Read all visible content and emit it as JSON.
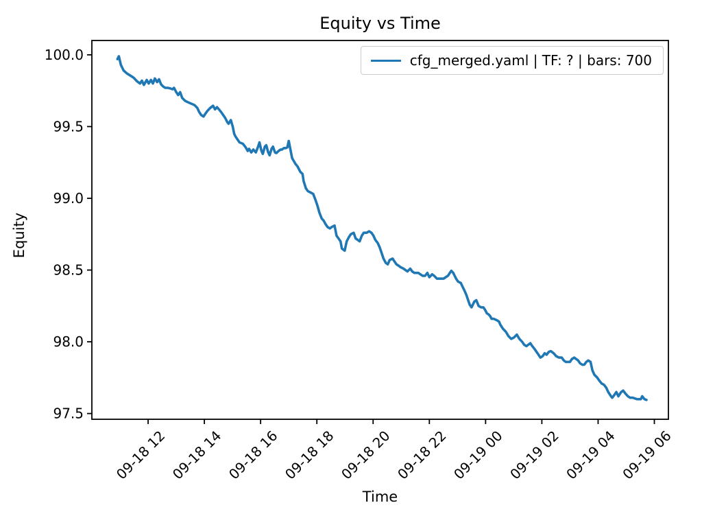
{
  "chart_data": {
    "type": "line",
    "title": "Equity vs Time",
    "xlabel": "Time",
    "ylabel": "Equity",
    "x_unit": "hours since 09-18 00:00",
    "xlim": [
      10.0,
      30.5
    ],
    "ylim": [
      97.46,
      100.1
    ],
    "grid": false,
    "legend_position": "upper right",
    "colors": {
      "line": "#1f77b4",
      "text": "#000000",
      "legend_border": "#cccccc",
      "background": "#ffffff"
    },
    "x_ticks": [
      {
        "pos": 12,
        "label": "09-18 12"
      },
      {
        "pos": 14,
        "label": "09-18 14"
      },
      {
        "pos": 16,
        "label": "09-18 16"
      },
      {
        "pos": 18,
        "label": "09-18 18"
      },
      {
        "pos": 20,
        "label": "09-18 20"
      },
      {
        "pos": 22,
        "label": "09-18 22"
      },
      {
        "pos": 24,
        "label": "09-19 00"
      },
      {
        "pos": 26,
        "label": "09-19 02"
      },
      {
        "pos": 28,
        "label": "09-19 04"
      },
      {
        "pos": 30,
        "label": "09-19 06"
      }
    ],
    "y_ticks": [
      {
        "pos": 100.0,
        "label": "100.0"
      },
      {
        "pos": 99.5,
        "label": "99.5"
      },
      {
        "pos": 99.0,
        "label": "99.0"
      },
      {
        "pos": 98.5,
        "label": "98.5"
      },
      {
        "pos": 98.0,
        "label": "98.0"
      },
      {
        "pos": 97.5,
        "label": "97.5"
      }
    ],
    "series": [
      {
        "name": "cfg_merged.yaml | TF: ? | bars: 700",
        "color": "#1f77b4",
        "x": [
          10.91,
          10.96,
          11.03,
          11.13,
          11.25,
          11.37,
          11.49,
          11.61,
          11.71,
          11.78,
          11.85,
          11.95,
          12.02,
          12.1,
          12.17,
          12.24,
          12.32,
          12.39,
          12.46,
          12.53,
          12.61,
          12.7,
          12.8,
          12.87,
          12.92,
          13.0,
          13.07,
          13.14,
          13.21,
          13.31,
          13.41,
          13.53,
          13.65,
          13.75,
          13.82,
          13.89,
          13.97,
          14.04,
          14.11,
          14.21,
          14.31,
          14.38,
          14.45,
          14.52,
          14.6,
          14.67,
          14.74,
          14.82,
          14.86,
          14.94,
          15.01,
          15.06,
          15.11,
          15.18,
          15.25,
          15.37,
          15.47,
          15.54,
          15.59,
          15.67,
          15.74,
          15.83,
          15.91,
          15.96,
          16.03,
          16.08,
          16.15,
          16.2,
          16.27,
          16.32,
          16.39,
          16.44,
          16.51,
          16.56,
          16.64,
          16.71,
          16.76,
          16.83,
          16.9,
          16.95,
          17.0,
          17.12,
          17.24,
          17.32,
          17.41,
          17.49,
          17.53,
          17.61,
          17.68,
          17.78,
          17.87,
          17.95,
          18.02,
          18.09,
          18.17,
          18.24,
          18.31,
          18.38,
          18.46,
          18.53,
          18.63,
          18.7,
          18.77,
          18.84,
          18.89,
          18.99,
          19.06,
          19.14,
          19.21,
          19.31,
          19.38,
          19.45,
          19.52,
          19.6,
          19.67,
          19.77,
          19.86,
          19.94,
          20.01,
          20.08,
          20.16,
          20.23,
          20.3,
          20.37,
          20.45,
          20.52,
          20.59,
          20.69,
          20.76,
          20.83,
          20.91,
          20.98,
          21.08,
          21.15,
          21.22,
          21.32,
          21.39,
          21.47,
          21.54,
          21.61,
          21.68,
          21.76,
          21.85,
          21.93,
          22.0,
          22.1,
          22.17,
          22.27,
          22.34,
          22.41,
          22.51,
          22.58,
          22.66,
          22.73,
          22.78,
          22.85,
          22.9,
          22.95,
          23.02,
          23.12,
          23.19,
          23.24,
          23.31,
          23.38,
          23.43,
          23.5,
          23.6,
          23.67,
          23.75,
          23.84,
          23.92,
          23.99,
          24.04,
          24.11,
          24.16,
          24.21,
          24.28,
          24.35,
          24.4,
          24.48,
          24.52,
          24.62,
          24.72,
          24.81,
          24.91,
          25.01,
          25.11,
          25.2,
          25.3,
          25.37,
          25.45,
          25.52,
          25.59,
          25.66,
          25.74,
          25.81,
          25.88,
          25.95,
          26.03,
          26.1,
          26.17,
          26.25,
          26.32,
          26.42,
          26.51,
          26.61,
          26.71,
          26.78,
          26.85,
          26.93,
          27.0,
          27.07,
          27.15,
          27.22,
          27.29,
          27.36,
          27.44,
          27.51,
          27.58,
          27.65,
          27.73,
          27.8,
          27.87,
          27.92,
          27.97,
          28.04,
          28.12,
          28.21,
          28.29,
          28.36,
          28.46,
          28.5,
          28.58,
          28.65,
          28.72,
          28.82,
          28.89,
          28.97,
          29.06,
          29.14,
          29.23,
          29.31,
          29.38,
          29.45,
          29.52,
          29.57,
          29.65,
          29.72
        ],
        "y": [
          99.97,
          99.99,
          99.93,
          99.89,
          99.87,
          99.855,
          99.84,
          99.815,
          99.8,
          99.82,
          99.79,
          99.825,
          99.8,
          99.825,
          99.8,
          99.835,
          99.81,
          99.83,
          99.795,
          99.78,
          99.77,
          99.77,
          99.765,
          99.76,
          99.77,
          99.74,
          99.72,
          99.74,
          99.7,
          99.68,
          99.67,
          99.66,
          99.65,
          99.63,
          99.6,
          99.58,
          99.57,
          99.59,
          99.61,
          99.63,
          99.645,
          99.62,
          99.635,
          99.62,
          99.6,
          99.58,
          99.56,
          99.53,
          99.52,
          99.545,
          99.5,
          99.45,
          99.43,
          99.41,
          99.39,
          99.38,
          99.355,
          99.33,
          99.345,
          99.32,
          99.34,
          99.32,
          99.36,
          99.39,
          99.33,
          99.31,
          99.36,
          99.37,
          99.32,
          99.3,
          99.345,
          99.36,
          99.32,
          99.315,
          99.33,
          99.34,
          99.34,
          99.35,
          99.35,
          99.355,
          99.4,
          99.28,
          99.24,
          99.22,
          99.185,
          99.17,
          99.12,
          99.07,
          99.05,
          99.04,
          99.03,
          98.99,
          98.95,
          98.9,
          98.86,
          98.845,
          98.82,
          98.8,
          98.79,
          98.8,
          98.81,
          98.74,
          98.72,
          98.7,
          98.65,
          98.635,
          98.7,
          98.73,
          98.75,
          98.76,
          98.72,
          98.71,
          98.7,
          98.74,
          98.76,
          98.76,
          98.77,
          98.76,
          98.74,
          98.71,
          98.69,
          98.66,
          98.62,
          98.58,
          98.55,
          98.54,
          98.57,
          98.58,
          98.56,
          98.54,
          98.53,
          98.52,
          98.51,
          98.5,
          98.49,
          98.51,
          98.49,
          98.48,
          98.48,
          98.48,
          98.47,
          98.46,
          98.46,
          98.48,
          98.45,
          98.47,
          98.46,
          98.44,
          98.44,
          98.44,
          98.44,
          98.45,
          98.46,
          98.48,
          98.495,
          98.48,
          98.46,
          98.44,
          98.42,
          98.41,
          98.38,
          98.36,
          98.33,
          98.29,
          98.26,
          98.24,
          98.28,
          98.29,
          98.25,
          98.24,
          98.24,
          98.22,
          98.2,
          98.19,
          98.18,
          98.16,
          98.16,
          98.155,
          98.15,
          98.14,
          98.12,
          98.09,
          98.07,
          98.04,
          98.02,
          98.03,
          98.05,
          98.02,
          98.0,
          97.98,
          97.97,
          97.98,
          97.99,
          97.97,
          97.95,
          97.93,
          97.91,
          97.89,
          97.9,
          97.92,
          97.91,
          97.93,
          97.935,
          97.92,
          97.9,
          97.89,
          97.89,
          97.87,
          97.86,
          97.86,
          97.86,
          97.88,
          97.89,
          97.88,
          97.87,
          97.85,
          97.84,
          97.84,
          97.86,
          97.87,
          97.86,
          97.8,
          97.77,
          97.76,
          97.75,
          97.73,
          97.71,
          97.7,
          97.68,
          97.65,
          97.62,
          97.61,
          97.63,
          97.65,
          97.62,
          97.65,
          97.66,
          97.64,
          97.62,
          97.61,
          97.61,
          97.605,
          97.6,
          97.6,
          97.6,
          97.62,
          97.6,
          97.595
        ]
      }
    ]
  }
}
